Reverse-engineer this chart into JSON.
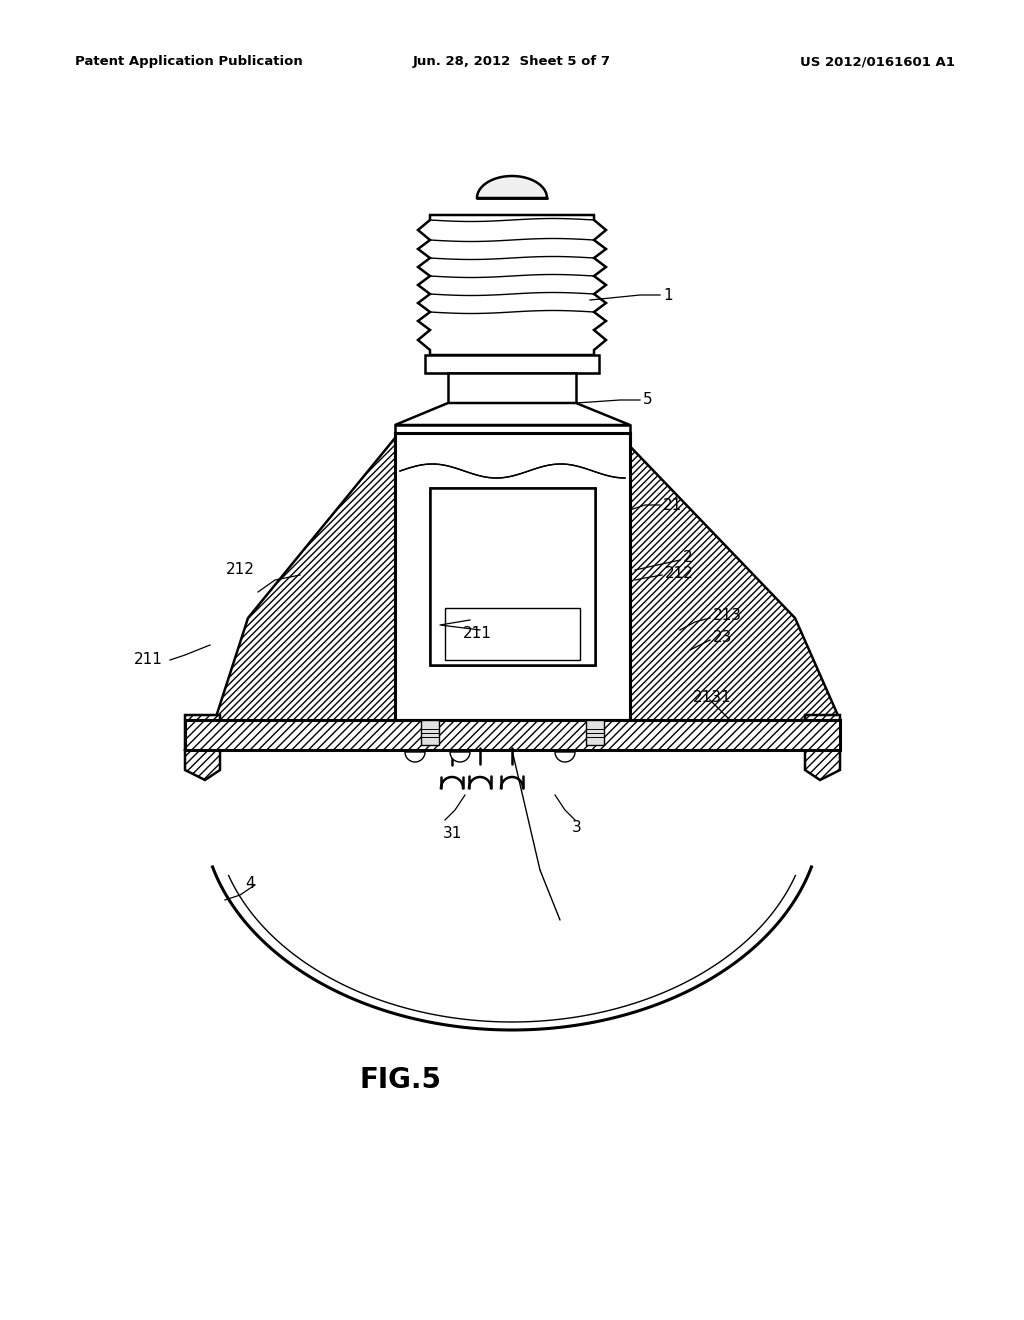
{
  "bg_color": "#ffffff",
  "header_left": "Patent Application Publication",
  "header_center": "Jun. 28, 2012  Sheet 5 of 7",
  "header_right": "US 2012/0161601 A1",
  "figure_label": "FIG.5"
}
